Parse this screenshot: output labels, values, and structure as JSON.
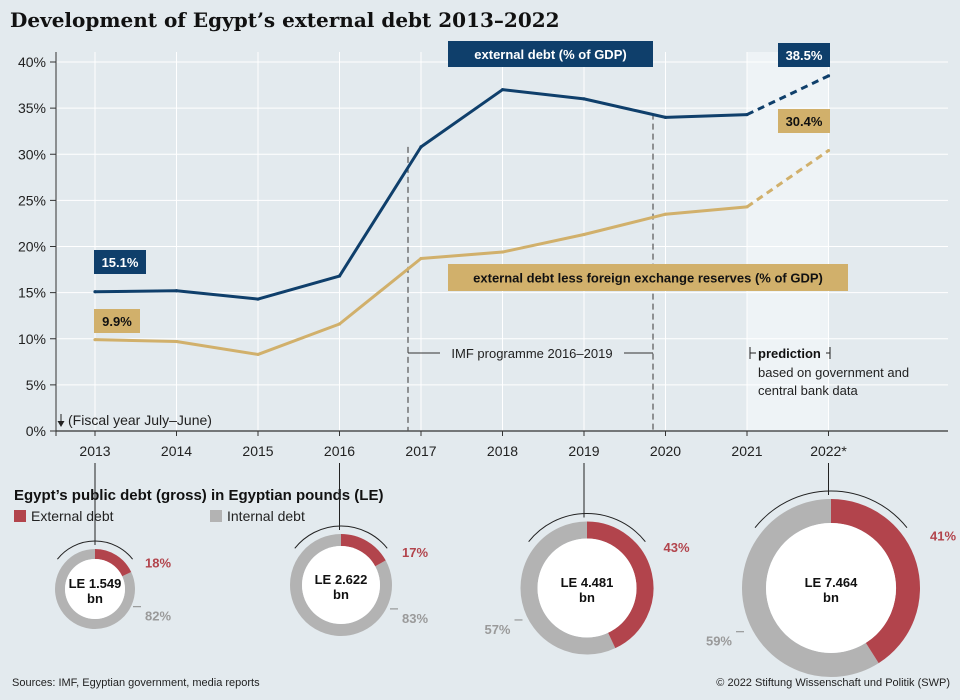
{
  "title": "Development of Egypt’s external debt 2013–2022",
  "chart_data": [
    {
      "type": "line",
      "ylim": [
        0,
        40
      ],
      "yticks": [
        "0%",
        "5%",
        "10%",
        "15%",
        "20%",
        "25%",
        "30%",
        "35%",
        "40%"
      ],
      "categories": [
        "2013",
        "2014",
        "2015",
        "2016",
        "2017",
        "2018",
        "2019",
        "2020",
        "2021",
        "2022*"
      ],
      "series": [
        {
          "name": "external debt (% of GDP)",
          "color": "#0f3f6b",
          "values": [
            15.1,
            15.2,
            14.3,
            16.8,
            30.8,
            37.0,
            36.0,
            34.0,
            34.3,
            38.5
          ]
        },
        {
          "name": "external debt less foreign exchange reserves (% of GDP)",
          "color": "#d1b06b",
          "values": [
            9.9,
            9.7,
            8.3,
            11.6,
            18.7,
            19.4,
            21.3,
            23.5,
            24.3,
            30.4
          ]
        }
      ],
      "value_labels": {
        "start_blue": "15.1%",
        "end_blue": "38.5%",
        "start_gold": "9.9%",
        "end_gold": "30.4%"
      },
      "annotations": {
        "fiscal_year": "(Fiscal year July–June)",
        "imf": "IMF programme 2016–2019",
        "prediction_title": "prediction",
        "prediction_text": [
          "based on government and",
          "central bank data"
        ]
      }
    },
    {
      "type": "pie",
      "title": "Egypt’s public debt (gross) in Egyptian pounds (LE)",
      "legend": [
        {
          "label": "External debt",
          "color": "#b2444c"
        },
        {
          "label": "Internal debt",
          "color": "#b3b3b3"
        }
      ],
      "donuts": [
        {
          "year": "2013",
          "total": [
            "LE 1.549",
            "bn"
          ],
          "external": 18,
          "internal": 82,
          "external_label": "18%",
          "internal_label": "82%"
        },
        {
          "year": "2016",
          "total": [
            "LE 2.622",
            "bn"
          ],
          "external": 17,
          "internal": 83,
          "external_label": "17%",
          "internal_label": "83%"
        },
        {
          "year": "2019",
          "total": [
            "LE 4.481",
            "bn"
          ],
          "external": 43,
          "internal": 57,
          "external_label": "43%",
          "internal_label": "57%"
        },
        {
          "year": "2022*",
          "total": [
            "LE 7.464",
            "bn"
          ],
          "external": 41,
          "internal": 59,
          "external_label": "41%",
          "internal_label": "59%"
        }
      ]
    }
  ],
  "footer": {
    "sources": "Sources: IMF, Egyptian government, media reports",
    "copyright": "© 2022 Stiftung Wissenschaft und Politik (SWP)"
  }
}
